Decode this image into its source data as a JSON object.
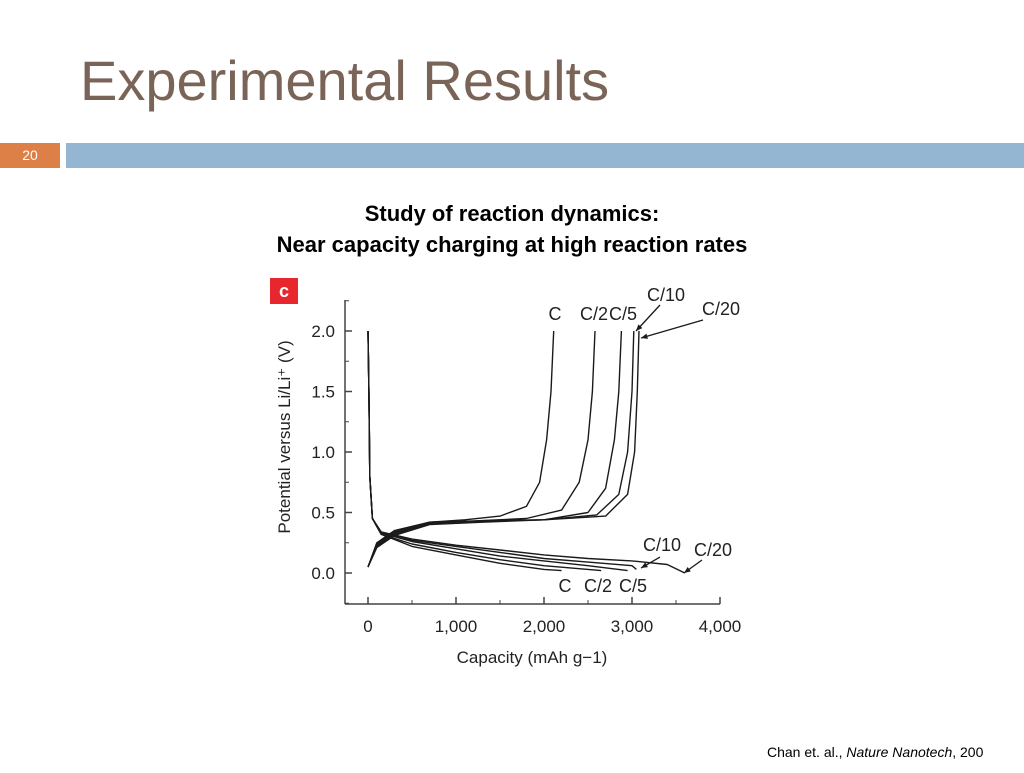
{
  "slide": {
    "title": "Experimental Results",
    "number": "20",
    "subtitle_line1": "Study of reaction dynamics:",
    "subtitle_line2": "Near capacity charging at high reaction rates",
    "citation_authors": "Chan et. al., ",
    "citation_journal": "Nature Nanotech",
    "citation_year": ", 200"
  },
  "colors": {
    "title": "#7a6457",
    "number_box": "#dd8047",
    "rule_bar": "#94b6d2",
    "panel_badge": "#e8262d"
  },
  "chart_data": {
    "type": "line",
    "panel_label": "c",
    "xlabel": "Capacity (mAh g−1)",
    "ylabel": "Potential versus Li/Li⁺ (V)",
    "xlim": [
      -300,
      4000
    ],
    "ylim": [
      -0.25,
      2.25
    ],
    "x_ticks": [
      0,
      1000,
      2000,
      3000,
      4000
    ],
    "x_tick_labels": [
      "0",
      "1,000",
      "2,000",
      "3,000",
      "4,000"
    ],
    "y_ticks": [
      0.0,
      0.5,
      1.0,
      1.5,
      2.0
    ],
    "y_tick_labels": [
      "0.0",
      "0.5",
      "1.0",
      "1.5",
      "2.0"
    ],
    "grid": false,
    "series": [
      {
        "name": "C",
        "charge": [
          [
            0,
            0.05
          ],
          [
            100,
            0.25
          ],
          [
            300,
            0.35
          ],
          [
            700,
            0.42
          ],
          [
            1100,
            0.44
          ],
          [
            1500,
            0.47
          ],
          [
            1800,
            0.55
          ],
          [
            1950,
            0.75
          ],
          [
            2030,
            1.1
          ],
          [
            2080,
            1.5
          ],
          [
            2110,
            2.0
          ]
        ],
        "discharge": [
          [
            0,
            2.0
          ],
          [
            10,
            1.5
          ],
          [
            20,
            0.8
          ],
          [
            50,
            0.45
          ],
          [
            150,
            0.32
          ],
          [
            500,
            0.22
          ],
          [
            1000,
            0.15
          ],
          [
            1500,
            0.08
          ],
          [
            2000,
            0.03
          ],
          [
            2200,
            0.02
          ]
        ]
      },
      {
        "name": "C/2",
        "charge": [
          [
            0,
            0.05
          ],
          [
            100,
            0.24
          ],
          [
            300,
            0.34
          ],
          [
            700,
            0.42
          ],
          [
            1200,
            0.43
          ],
          [
            1800,
            0.45
          ],
          [
            2200,
            0.52
          ],
          [
            2400,
            0.75
          ],
          [
            2500,
            1.1
          ],
          [
            2550,
            1.5
          ],
          [
            2580,
            2.0
          ]
        ],
        "discharge": [
          [
            0,
            2.0
          ],
          [
            10,
            1.5
          ],
          [
            20,
            0.8
          ],
          [
            50,
            0.45
          ],
          [
            150,
            0.32
          ],
          [
            500,
            0.24
          ],
          [
            1000,
            0.17
          ],
          [
            1500,
            0.11
          ],
          [
            2000,
            0.06
          ],
          [
            2500,
            0.03
          ],
          [
            2650,
            0.02
          ]
        ]
      },
      {
        "name": "C/5",
        "charge": [
          [
            0,
            0.05
          ],
          [
            100,
            0.23
          ],
          [
            300,
            0.33
          ],
          [
            700,
            0.42
          ],
          [
            1300,
            0.43
          ],
          [
            2000,
            0.44
          ],
          [
            2500,
            0.5
          ],
          [
            2700,
            0.7
          ],
          [
            2800,
            1.1
          ],
          [
            2850,
            1.5
          ],
          [
            2880,
            2.0
          ]
        ],
        "discharge": [
          [
            0,
            2.0
          ],
          [
            10,
            1.5
          ],
          [
            20,
            0.8
          ],
          [
            50,
            0.45
          ],
          [
            150,
            0.33
          ],
          [
            500,
            0.26
          ],
          [
            1000,
            0.2
          ],
          [
            1500,
            0.14
          ],
          [
            2000,
            0.1
          ],
          [
            2500,
            0.06
          ],
          [
            2950,
            0.02
          ]
        ]
      },
      {
        "name": "C/10",
        "charge": [
          [
            0,
            0.05
          ],
          [
            100,
            0.22
          ],
          [
            300,
            0.32
          ],
          [
            700,
            0.41
          ],
          [
            1300,
            0.43
          ],
          [
            2000,
            0.44
          ],
          [
            2600,
            0.48
          ],
          [
            2850,
            0.65
          ],
          [
            2950,
            1.0
          ],
          [
            3000,
            1.5
          ],
          [
            3020,
            2.0
          ]
        ],
        "discharge": [
          [
            0,
            2.0
          ],
          [
            10,
            1.5
          ],
          [
            20,
            0.8
          ],
          [
            50,
            0.45
          ],
          [
            150,
            0.33
          ],
          [
            500,
            0.27
          ],
          [
            1000,
            0.22
          ],
          [
            1500,
            0.17
          ],
          [
            2000,
            0.12
          ],
          [
            2500,
            0.09
          ],
          [
            3000,
            0.06
          ],
          [
            3050,
            0.03
          ]
        ]
      },
      {
        "name": "C/20",
        "charge": [
          [
            0,
            0.05
          ],
          [
            100,
            0.21
          ],
          [
            300,
            0.31
          ],
          [
            700,
            0.4
          ],
          [
            1300,
            0.42
          ],
          [
            2000,
            0.44
          ],
          [
            2700,
            0.47
          ],
          [
            2950,
            0.65
          ],
          [
            3030,
            1.0
          ],
          [
            3060,
            1.5
          ],
          [
            3080,
            2.0
          ]
        ],
        "discharge": [
          [
            0,
            2.0
          ],
          [
            10,
            1.5
          ],
          [
            20,
            0.8
          ],
          [
            50,
            0.45
          ],
          [
            150,
            0.34
          ],
          [
            500,
            0.28
          ],
          [
            1000,
            0.23
          ],
          [
            1500,
            0.19
          ],
          [
            2000,
            0.15
          ],
          [
            2500,
            0.12
          ],
          [
            3000,
            0.1
          ],
          [
            3400,
            0.07
          ],
          [
            3600,
            0.0
          ]
        ]
      }
    ],
    "charge_labels": [
      "C",
      "C/2",
      "C/5",
      "C/10",
      "C/20"
    ],
    "discharge_labels": [
      "C",
      "C/2",
      "C/5",
      "C/10",
      "C/20"
    ]
  }
}
